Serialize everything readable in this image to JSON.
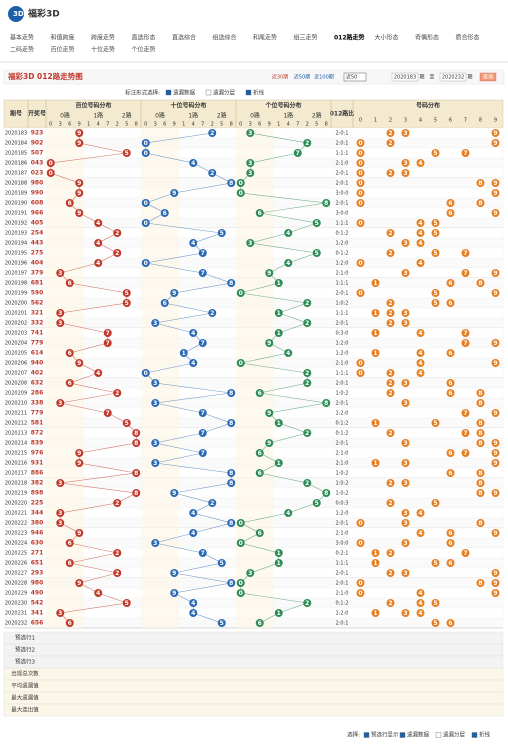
{
  "header": {
    "logo": "福彩3D",
    "nav": [
      "基本走势",
      "和值跨度",
      "跨度走势",
      "直选形态",
      "直选综合",
      "组选综合",
      "和尾走势",
      "组三走势",
      "012路走势",
      "大小形态",
      "奇偶形态",
      "质合形态",
      "二码走势",
      "百位走势",
      "十位走势",
      "个位走势"
    ],
    "active_nav": 8
  },
  "toolbar": {
    "title": "福彩3D 012路走势图",
    "ranges": [
      "近30期",
      "近50期",
      "近100期"
    ],
    "select": "近50",
    "from": "2020183",
    "from_unit": "期",
    "to_label": "至",
    "to": "2020232",
    "to_unit": "期",
    "button": "查询"
  },
  "options": {
    "label": "标注形式选择:",
    "items": [
      "遗漏数据",
      "遗漏分层",
      "折线"
    ],
    "checked": [
      true,
      false,
      true
    ]
  },
  "table": {
    "headers": {
      "period": "期号",
      "number": "开奖号",
      "groups": [
        "百位号码分布",
        "十位号码分布",
        "个位号码分布"
      ],
      "ratio": "012路比",
      "distribution": "号码分布",
      "routes": [
        "0路",
        "1路",
        "2路"
      ],
      "digit_order": [
        0,
        3,
        6,
        9,
        1,
        4,
        7,
        2,
        5,
        8
      ],
      "dist_digits": [
        0,
        1,
        2,
        3,
        4,
        5,
        6,
        7,
        8,
        9
      ]
    },
    "rows": [
      {
        "period": "2020183",
        "number": "923",
        "digits": [
          9,
          2,
          3
        ],
        "ratio": "2:0:1"
      },
      {
        "period": "2020184",
        "number": "902",
        "digits": [
          9,
          0,
          2
        ],
        "ratio": "2:0:1"
      },
      {
        "period": "2020185",
        "number": "507",
        "digits": [
          5,
          0,
          7
        ],
        "ratio": "1:1:1"
      },
      {
        "period": "2020186",
        "number": "043",
        "digits": [
          0,
          4,
          3
        ],
        "ratio": "2:1:0"
      },
      {
        "period": "2020187",
        "number": "023",
        "digits": [
          0,
          2,
          3
        ],
        "ratio": "2:0:1"
      },
      {
        "period": "2020188",
        "number": "980",
        "digits": [
          9,
          8,
          0
        ],
        "ratio": "2:0:1"
      },
      {
        "period": "2020189",
        "number": "990",
        "digits": [
          9,
          9,
          0
        ],
        "ratio": "3:0:0"
      },
      {
        "period": "2020190",
        "number": "608",
        "digits": [
          6,
          0,
          8
        ],
        "ratio": "2:0:1"
      },
      {
        "period": "2020191",
        "number": "966",
        "digits": [
          9,
          6,
          6
        ],
        "ratio": "3:0:0"
      },
      {
        "period": "2020192",
        "number": "405",
        "digits": [
          4,
          0,
          5
        ],
        "ratio": "1:1:1"
      },
      {
        "period": "2020193",
        "number": "254",
        "digits": [
          2,
          5,
          4
        ],
        "ratio": "0:1:2"
      },
      {
        "period": "2020194",
        "number": "443",
        "digits": [
          4,
          4,
          3
        ],
        "ratio": "1:2:0"
      },
      {
        "period": "2020195",
        "number": "275",
        "digits": [
          2,
          7,
          5
        ],
        "ratio": "0:1:2"
      },
      {
        "period": "2020196",
        "number": "404",
        "digits": [
          4,
          0,
          4
        ],
        "ratio": "1:2:0"
      },
      {
        "period": "2020197",
        "number": "379",
        "digits": [
          3,
          7,
          9
        ],
        "ratio": "2:1:0"
      },
      {
        "period": "2020198",
        "number": "681",
        "digits": [
          6,
          8,
          1
        ],
        "ratio": "1:1:1"
      },
      {
        "period": "2020199",
        "number": "590",
        "digits": [
          5,
          9,
          0
        ],
        "ratio": "2:0:1"
      },
      {
        "period": "2020200",
        "number": "562",
        "digits": [
          5,
          6,
          2
        ],
        "ratio": "1:0:2"
      },
      {
        "period": "2020201",
        "number": "321",
        "digits": [
          3,
          2,
          1
        ],
        "ratio": "1:1:1"
      },
      {
        "period": "2020202",
        "number": "332",
        "digits": [
          3,
          3,
          2
        ],
        "ratio": "2:0:1"
      },
      {
        "period": "2020203",
        "number": "741",
        "digits": [
          7,
          4,
          1
        ],
        "ratio": "0:3:0"
      },
      {
        "period": "2020204",
        "number": "779",
        "digits": [
          7,
          7,
          9
        ],
        "ratio": "1:2:0"
      },
      {
        "period": "2020205",
        "number": "614",
        "digits": [
          6,
          1,
          4
        ],
        "ratio": "1:2:0"
      },
      {
        "period": "2020206",
        "number": "940",
        "digits": [
          9,
          4,
          0
        ],
        "ratio": "2:1:0"
      },
      {
        "period": "2020207",
        "number": "402",
        "digits": [
          4,
          0,
          2
        ],
        "ratio": "1:1:1"
      },
      {
        "period": "2020208",
        "number": "632",
        "digits": [
          6,
          3,
          2
        ],
        "ratio": "2:0:1"
      },
      {
        "period": "2020209",
        "number": "286",
        "digits": [
          2,
          8,
          6
        ],
        "ratio": "1:0:2"
      },
      {
        "period": "2020210",
        "number": "338",
        "digits": [
          3,
          3,
          8
        ],
        "ratio": "2:0:1"
      },
      {
        "period": "2020211",
        "number": "779",
        "digits": [
          7,
          7,
          9
        ],
        "ratio": "1:2:0"
      },
      {
        "period": "2020212",
        "number": "581",
        "digits": [
          5,
          8,
          1
        ],
        "ratio": "0:1:2"
      },
      {
        "period": "2020213",
        "number": "872",
        "digits": [
          8,
          7,
          2
        ],
        "ratio": "0:1:2"
      },
      {
        "period": "2020214",
        "number": "839",
        "digits": [
          8,
          3,
          9
        ],
        "ratio": "2:0:1"
      },
      {
        "period": "2020215",
        "number": "976",
        "digits": [
          9,
          7,
          6
        ],
        "ratio": "2:1:0"
      },
      {
        "period": "2020216",
        "number": "931",
        "digits": [
          9,
          3,
          1
        ],
        "ratio": "2:1:0"
      },
      {
        "period": "2020217",
        "number": "886",
        "digits": [
          8,
          8,
          6
        ],
        "ratio": "1:0:2"
      },
      {
        "period": "2020218",
        "number": "382",
        "digits": [
          3,
          8,
          2
        ],
        "ratio": "1:0:2"
      },
      {
        "period": "2020219",
        "number": "898",
        "digits": [
          8,
          9,
          8
        ],
        "ratio": "1:0:2"
      },
      {
        "period": "2020220",
        "number": "225",
        "digits": [
          2,
          2,
          5
        ],
        "ratio": "0:0:3"
      },
      {
        "period": "2020221",
        "number": "344",
        "digits": [
          3,
          4,
          4
        ],
        "ratio": "1:2:0"
      },
      {
        "period": "2020222",
        "number": "380",
        "digits": [
          3,
          8,
          0
        ],
        "ratio": "2:0:1"
      },
      {
        "period": "2020223",
        "number": "946",
        "digits": [
          9,
          4,
          6
        ],
        "ratio": "2:1:0"
      },
      {
        "period": "2020224",
        "number": "630",
        "digits": [
          6,
          3,
          0
        ],
        "ratio": "3:0:0"
      },
      {
        "period": "2020225",
        "number": "271",
        "digits": [
          2,
          7,
          1
        ],
        "ratio": "0:2:1"
      },
      {
        "period": "2020226",
        "number": "651",
        "digits": [
          6,
          5,
          1
        ],
        "ratio": "1:1:1"
      },
      {
        "period": "2020227",
        "number": "293",
        "digits": [
          2,
          9,
          3
        ],
        "ratio": "2:0:1"
      },
      {
        "period": "2020228",
        "number": "980",
        "digits": [
          9,
          8,
          0
        ],
        "ratio": "2:0:1"
      },
      {
        "period": "2020229",
        "number": "490",
        "digits": [
          4,
          9,
          0
        ],
        "ratio": "2:1:0"
      },
      {
        "period": "2020230",
        "number": "542",
        "digits": [
          5,
          4,
          2
        ],
        "ratio": "0:1:2"
      },
      {
        "period": "2020231",
        "number": "341",
        "digits": [
          3,
          4,
          1
        ],
        "ratio": "1:2:0"
      },
      {
        "period": "2020232",
        "number": "656",
        "digits": [
          6,
          5,
          6
        ],
        "ratio": "2:0:1"
      }
    ],
    "stats_labels": [
      "预选行1",
      "预选行2",
      "预选行3",
      "出现总次数",
      "平均遗漏值",
      "最大遗漏值",
      "最大连出值"
    ]
  },
  "footer": {
    "label": "选择:",
    "items": [
      "预选行显示",
      "遗漏数据",
      "遗漏分层",
      "折线"
    ],
    "checked": [
      true,
      true,
      false,
      true
    ]
  }
}
